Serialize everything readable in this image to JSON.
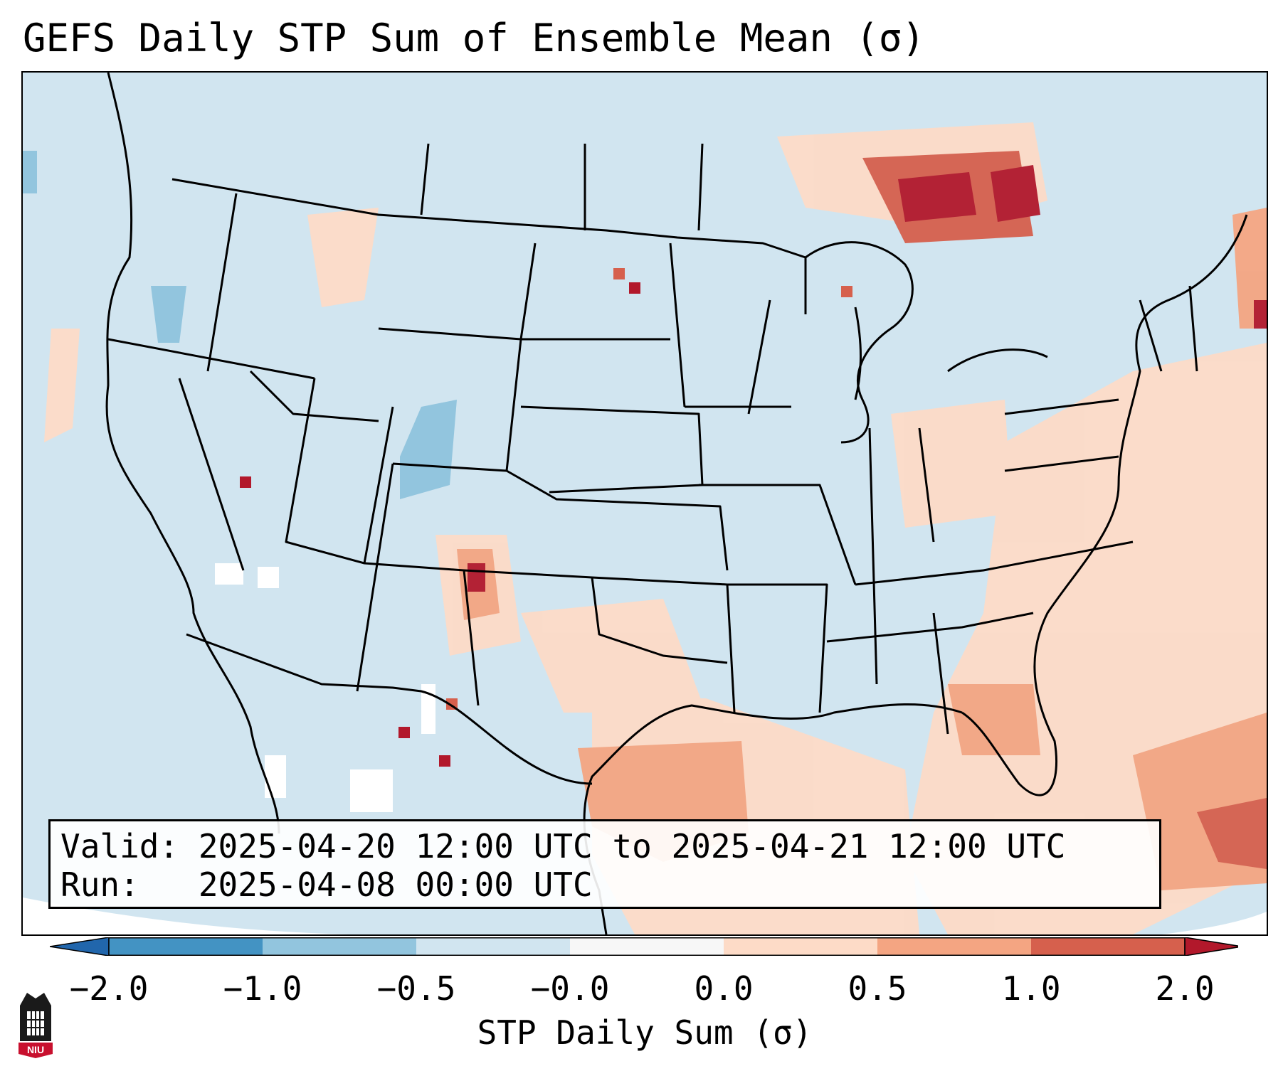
{
  "title": "GEFS Daily STP Sum of Ensemble Mean (σ)",
  "info": {
    "valid_line": "Valid: 2025-04-20 12:00 UTC to 2025-04-21 12:00 UTC",
    "run_line": "Run:   2025-04-08 00:00 UTC"
  },
  "colorbar": {
    "label": "STP Daily Sum (σ)",
    "ticks": [
      "−2.0",
      "−1.0",
      "−0.5",
      "−0.0",
      "0.0",
      "0.5",
      "1.0",
      "2.0"
    ],
    "colors": [
      "#2166ac",
      "#4393c3",
      "#92c5de",
      "#d1e5f0",
      "#f7f7f7",
      "#fddbc7",
      "#f4a582",
      "#d6604d",
      "#b2182b"
    ]
  },
  "logo": {
    "text": "NIU"
  }
}
